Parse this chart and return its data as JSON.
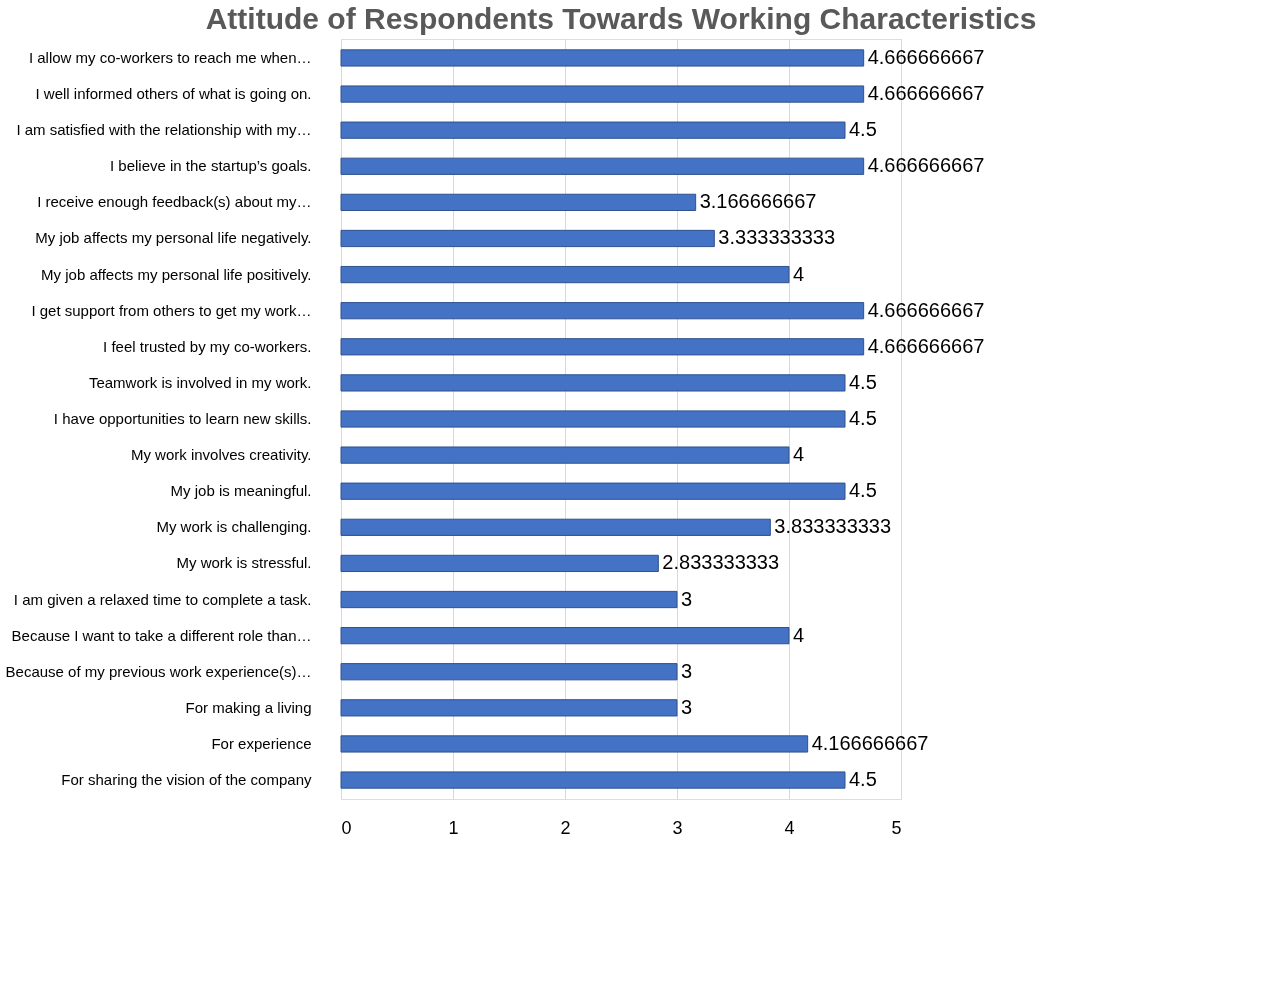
{
  "chart_data": {
    "type": "bar",
    "orientation": "horizontal",
    "title": "Attitude of Respondents Towards Working Characteristics",
    "categories": [
      "I allow my co-workers to reach me when…",
      "I well informed others of what is going on.",
      "I am satisfied with the relationship with my…",
      "I believe in the startup’s goals.",
      "I receive enough feedback(s) about my…",
      "My job affects my personal life negatively.",
      "My job affects my personal life positively.",
      "I get support from others to get my work…",
      "I feel trusted by my co-workers.",
      "Teamwork is involved in my work.",
      "I have opportunities to learn new skills.",
      "My work involves creativity.",
      "My job is meaningful.",
      "My work is challenging.",
      "My work is stressful.",
      "I am given a relaxed time to complete a task.",
      "Because I want to take a different role than…",
      "Because of my previous work experience(s)…",
      "For making a living",
      "For experience",
      "For sharing the vision of the company"
    ],
    "values": [
      4.666666667,
      4.666666667,
      4.5,
      4.666666667,
      3.166666667,
      3.333333333,
      4,
      4.666666667,
      4.666666667,
      4.5,
      4.5,
      4,
      4.5,
      3.833333333,
      2.833333333,
      3,
      4,
      3,
      3,
      4.166666667,
      4.5
    ],
    "color": "#4472c4",
    "xlim": [
      0,
      5
    ],
    "xticks": [
      0,
      1,
      2,
      3,
      4,
      5
    ],
    "grid": "x",
    "data_labels": true
  }
}
